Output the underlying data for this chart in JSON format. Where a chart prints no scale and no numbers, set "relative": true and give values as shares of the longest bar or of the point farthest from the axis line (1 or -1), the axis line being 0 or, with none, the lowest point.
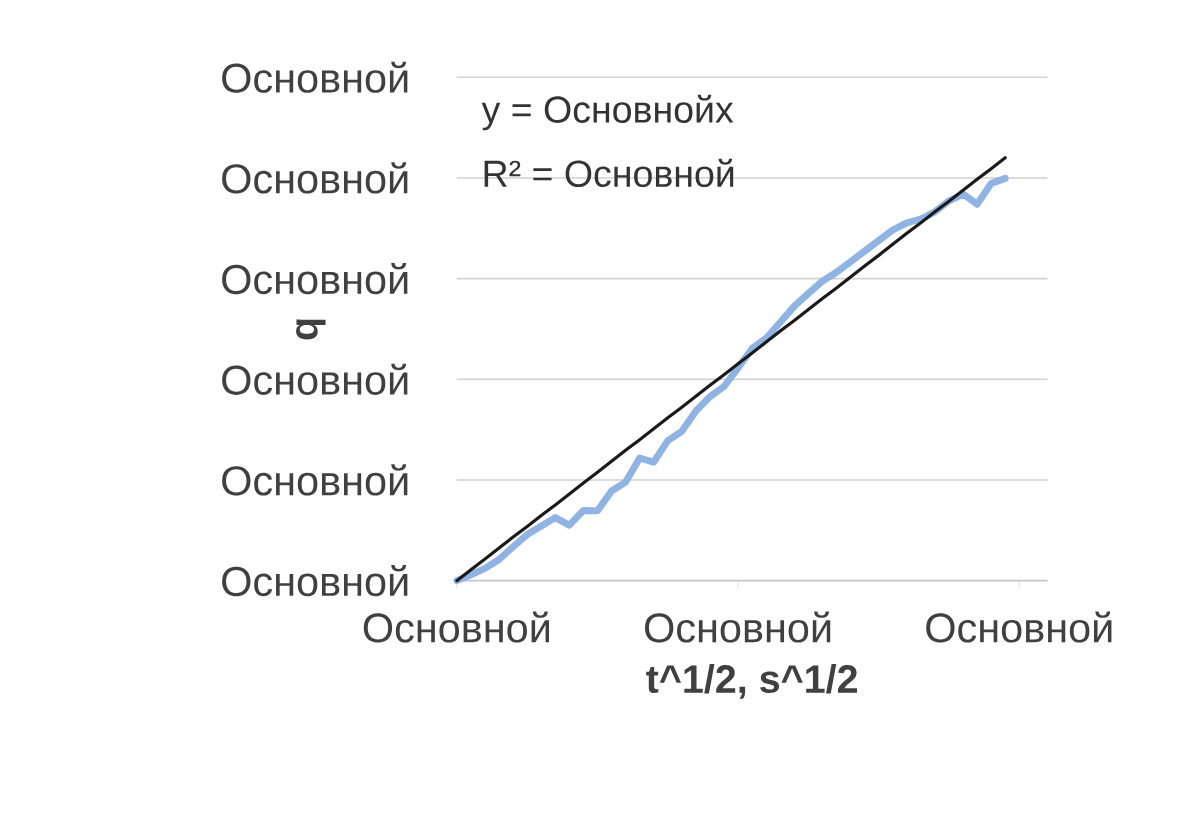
{
  "chart_data": {
    "type": "line",
    "relative": true,
    "xlabel": "t^1/2, s^1/2",
    "ylabel": "q",
    "annotations": [
      "y = Основнойx",
      "R² = Основной",
      "Основной",
      "Основной",
      "Основной",
      "Основной",
      "Основной",
      "Основной"
    ],
    "categories": [
      "Основной",
      null,
      null,
      null,
      null,
      null,
      null,
      null,
      null,
      null,
      null,
      null,
      null,
      null,
      null,
      null,
      null,
      null,
      null,
      null,
      "Основной",
      null,
      null,
      null,
      null,
      null,
      null,
      null,
      null,
      null,
      null,
      null,
      null,
      null,
      null,
      null,
      null,
      null,
      null,
      null,
      "Основной"
    ],
    "grid": "y",
    "marker": "none",
    "series": [
      {
        "color": "#8fb4e3",
        "values": [
          0,
          0.014,
          0.029,
          0.05,
          0.08,
          0.109,
          0.129,
          0.149,
          0.131,
          0.166,
          0.165,
          0.212,
          0.233,
          0.29,
          0.28,
          0.331,
          0.353,
          0.401,
          0.435,
          0.459,
          0.503,
          0.549,
          0.573,
          0.611,
          0.649,
          0.679,
          0.708,
          0.729,
          0.754,
          0.779,
          0.804,
          0.829,
          0.846,
          0.855,
          0.872,
          0.898,
          0.914,
          0.89,
          0.939,
          0.951,
          null
        ]
      },
      {
        "color": "#1a1a1a",
        "values": [
          0,
          0.026,
          0.051,
          0.077,
          0.103,
          0.128,
          0.154,
          0.179,
          0.205,
          0.231,
          0.256,
          0.282,
          0.308,
          0.333,
          0.359,
          0.385,
          0.41,
          0.436,
          0.462,
          0.487,
          0.513,
          0.538,
          0.564,
          0.59,
          0.615,
          0.641,
          0.667,
          0.692,
          0.718,
          0.744,
          0.769,
          0.795,
          0.821,
          0.846,
          0.872,
          0.897,
          0.923,
          0.949,
          0.974,
          1,
          null
        ]
      }
    ]
  }
}
